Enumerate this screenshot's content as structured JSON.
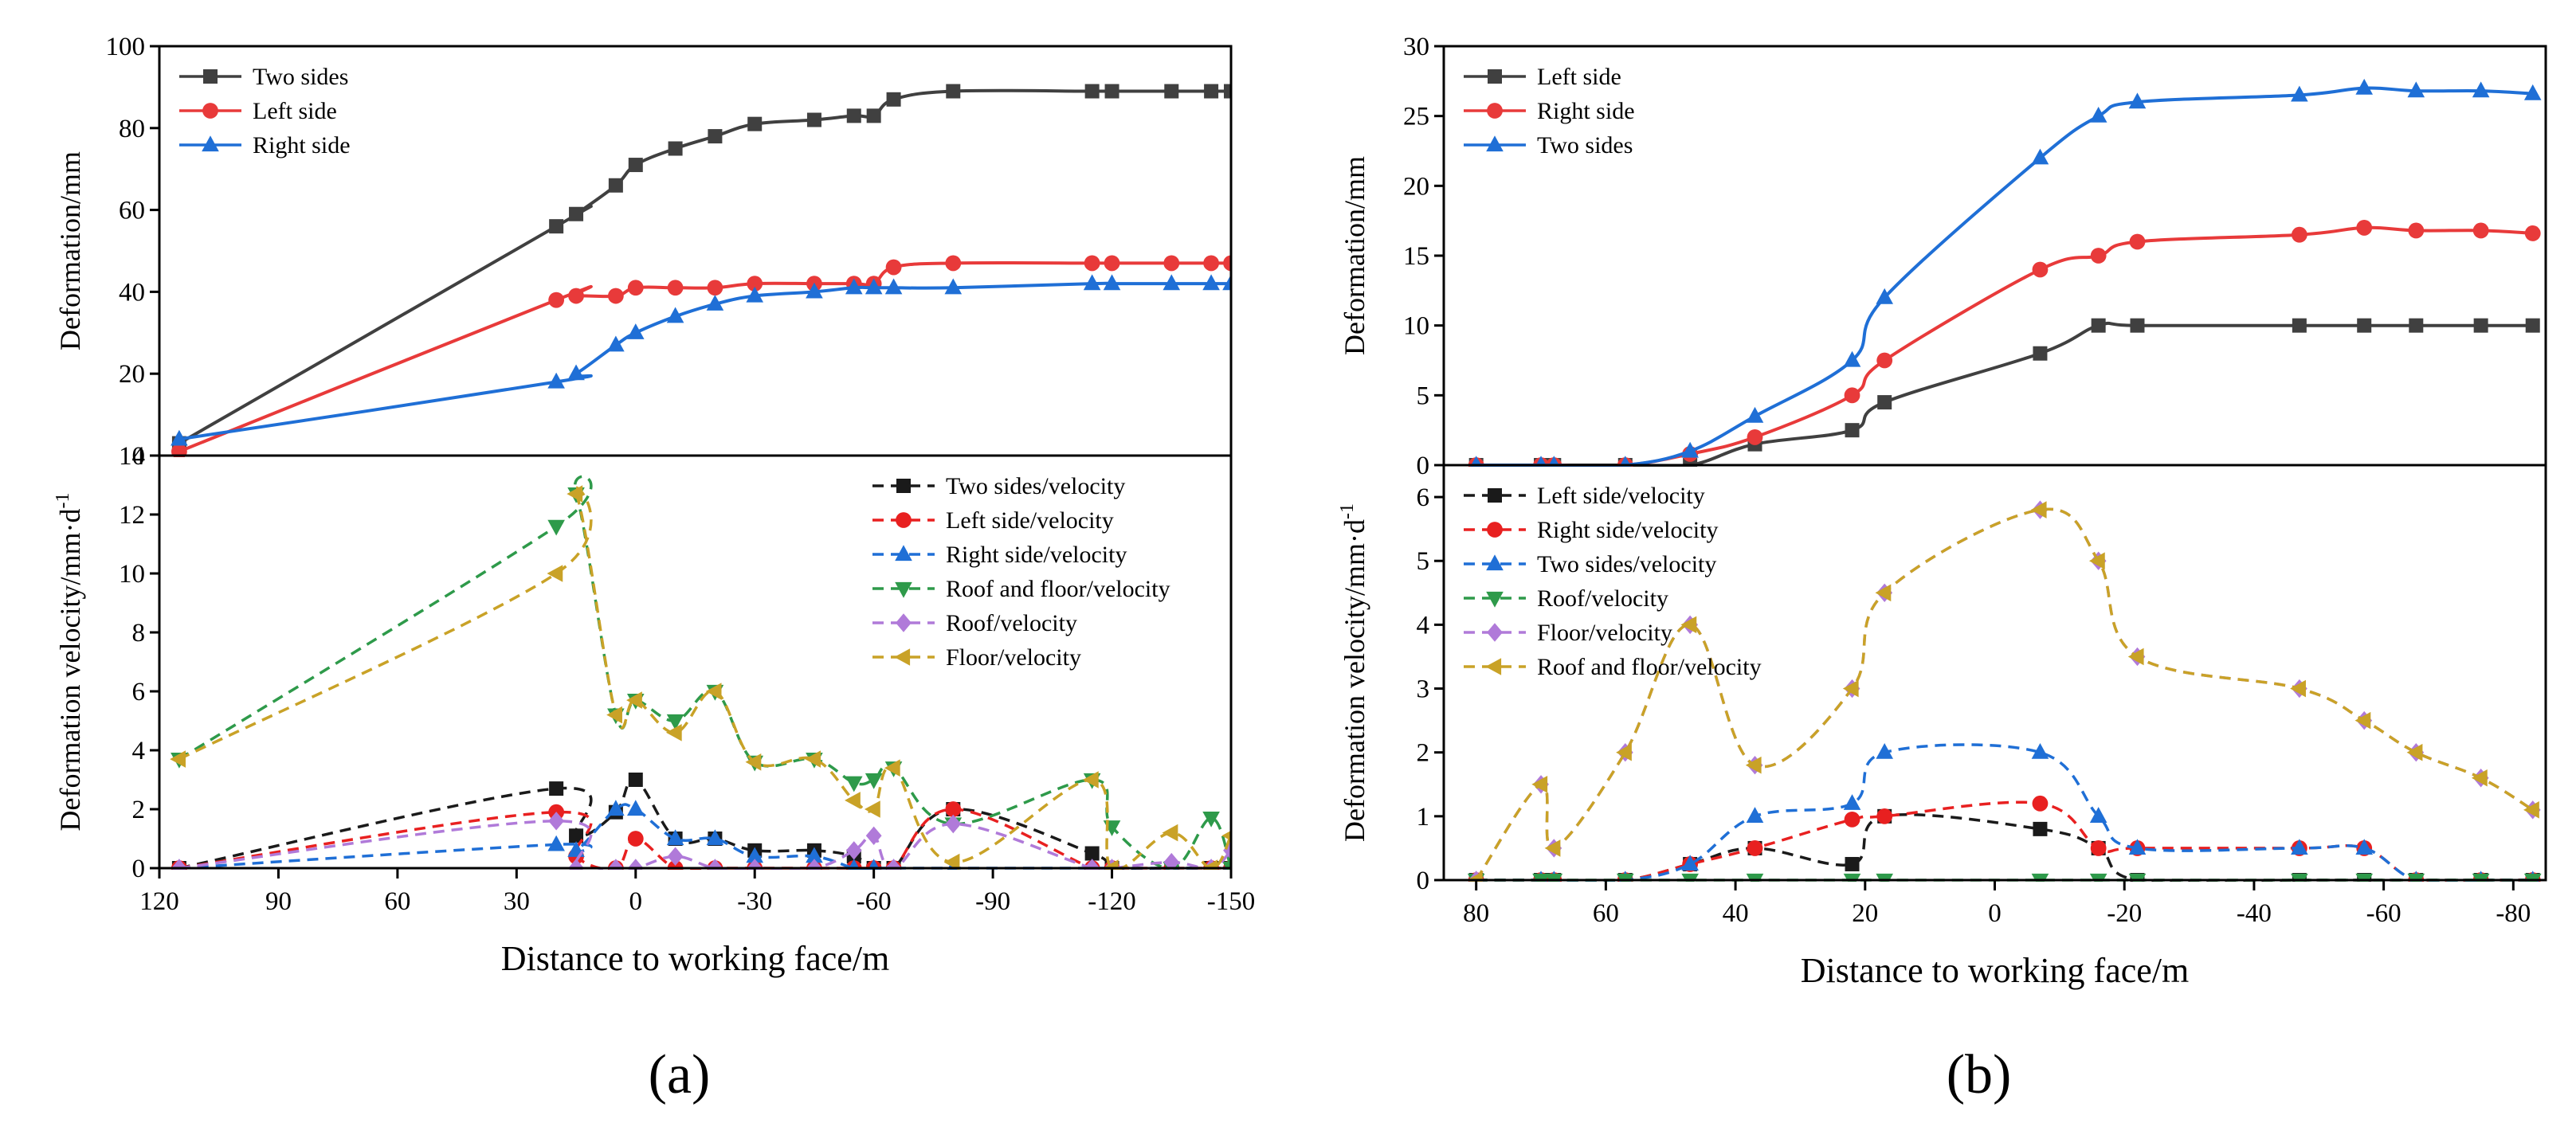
{
  "chart_data": [
    {
      "panel": "(a)",
      "type": "line",
      "xlabel": "Distance to working face/m",
      "xlim": [
        120,
        -150
      ],
      "xticks": [
        120,
        90,
        60,
        30,
        0,
        -30,
        -60,
        -90,
        -120,
        -150
      ],
      "top": {
        "ylabel": "Deformation/mm",
        "ylim": [
          0,
          100
        ],
        "yticks": [
          0,
          20,
          40,
          60,
          80,
          100
        ],
        "legend_position": "top-left",
        "series": [
          {
            "name": "Two sides",
            "color": "#404040",
            "marker": "square",
            "dash": false,
            "x": [
              115,
              20,
              15,
              5,
              0,
              -10,
              -20,
              -30,
              -45,
              -55,
              -60,
              -65,
              -80,
              -115,
              -120,
              -135,
              -145,
              -150
            ],
            "y": [
              3,
              56,
              59,
              66,
              71,
              75,
              78,
              81,
              82,
              83,
              83,
              87,
              89,
              89,
              89,
              89,
              89,
              89
            ]
          },
          {
            "name": "Left side",
            "color": "#e83a3a",
            "marker": "circle",
            "dash": false,
            "x": [
              115,
              20,
              15,
              5,
              0,
              -10,
              -20,
              -30,
              -45,
              -55,
              -60,
              -65,
              -80,
              -115,
              -120,
              -135,
              -145,
              -150
            ],
            "y": [
              1,
              38,
              39,
              39,
              41,
              41,
              41,
              42,
              42,
              42,
              42,
              46,
              47,
              47,
              47,
              47,
              47,
              47
            ]
          },
          {
            "name": "Right side",
            "color": "#1f6fd6",
            "marker": "triangle",
            "dash": false,
            "x": [
              115,
              20,
              15,
              5,
              0,
              -10,
              -20,
              -30,
              -45,
              -55,
              -60,
              -65,
              -80,
              -115,
              -120,
              -135,
              -145,
              -150
            ],
            "y": [
              4,
              18,
              20,
              27,
              30,
              34,
              37,
              39,
              40,
              41,
              41,
              41,
              41,
              42,
              42,
              42,
              42,
              42
            ]
          }
        ]
      },
      "bottom": {
        "ylabel": "Deformation velocity/mm·d",
        "ylabel_sup": "-1",
        "ylim": [
          0,
          14
        ],
        "yticks": [
          0,
          2,
          4,
          6,
          8,
          10,
          12,
          14
        ],
        "legend_position": "top-right",
        "series": [
          {
            "name": "Two sides/velocity",
            "color": "#1a1a1a",
            "marker": "square",
            "dash": true,
            "x": [
              115,
              20,
              15,
              5,
              0,
              -10,
              -20,
              -30,
              -45,
              -55,
              -60,
              -65,
              -80,
              -115,
              -120,
              -135,
              -145,
              -150
            ],
            "y": [
              0,
              2.7,
              1.1,
              1.9,
              3,
              1,
              1,
              0.6,
              0.6,
              0.4,
              0,
              0,
              2,
              0.5,
              0,
              0,
              0,
              0
            ]
          },
          {
            "name": "Left side/velocity",
            "color": "#e82020",
            "marker": "circle",
            "dash": true,
            "x": [
              115,
              20,
              15,
              5,
              0,
              -10,
              -20,
              -30,
              -45,
              -55,
              -60,
              -65,
              -80,
              -115,
              -120,
              -135,
              -145,
              -150
            ],
            "y": [
              0,
              1.9,
              0.4,
              0,
              1,
              0,
              0,
              0,
              0,
              0,
              0,
              0,
              2,
              0,
              0,
              0,
              0,
              0
            ]
          },
          {
            "name": "Right side/velocity",
            "color": "#1f6fd6",
            "marker": "triangle-up",
            "dash": true,
            "x": [
              115,
              20,
              15,
              5,
              0,
              -10,
              -20,
              -30,
              -45,
              -55,
              -60,
              -65,
              -80,
              -115,
              -120,
              -135,
              -145,
              -150
            ],
            "y": [
              0,
              0.8,
              0.6,
              2,
              2,
              1,
              1,
              0.4,
              0.4,
              0,
              0,
              0,
              0,
              0,
              0,
              0,
              0,
              0
            ]
          },
          {
            "name": "Roof and floor/velocity",
            "color": "#2e9a4a",
            "marker": "triangle-down",
            "dash": true,
            "x": [
              115,
              20,
              15,
              5,
              0,
              -10,
              -20,
              -30,
              -45,
              -55,
              -60,
              -65,
              -80,
              -115,
              -120,
              -135,
              -145,
              -150
            ],
            "y": [
              3.7,
              11.6,
              12.7,
              5.2,
              5.7,
              5,
              6,
              3.6,
              3.7,
              2.9,
              3,
              3.4,
              1.5,
              3,
              1.4,
              0,
              1.7,
              0
            ]
          },
          {
            "name": "Roof/velocity",
            "color": "#b07ad9",
            "marker": "diamond",
            "dash": true,
            "x": [
              115,
              20,
              15,
              5,
              0,
              -10,
              -20,
              -30,
              -45,
              -55,
              -60,
              -65,
              -80,
              -115,
              -120,
              -135,
              -145,
              -150
            ],
            "y": [
              0,
              1.6,
              0,
              0,
              0,
              0.4,
              0,
              0,
              0,
              0.6,
              1.1,
              0,
              1.5,
              0,
              0,
              0.2,
              0,
              0.6
            ]
          },
          {
            "name": "Floor/velocity",
            "color": "#c9a227",
            "marker": "triangle-left",
            "dash": true,
            "x": [
              115,
              20,
              15,
              5,
              0,
              -10,
              -20,
              -30,
              -45,
              -55,
              -60,
              -65,
              -80,
              -115,
              -120,
              -135,
              -145,
              -150
            ],
            "y": [
              3.7,
              10,
              12.7,
              5.2,
              5.7,
              4.6,
              6,
              3.6,
              3.7,
              2.3,
              2,
              3.4,
              0.2,
              3,
              0,
              1.2,
              0,
              1.1
            ]
          }
        ]
      }
    },
    {
      "panel": "(b)",
      "type": "line",
      "xlabel": "Distance to working face/m",
      "xlim": [
        85,
        -85
      ],
      "xticks": [
        80,
        60,
        40,
        20,
        0,
        -20,
        -40,
        -60,
        -80
      ],
      "top": {
        "ylabel": "Deformation/mm",
        "ylim": [
          0,
          30
        ],
        "yticks": [
          0,
          5,
          10,
          15,
          20,
          25,
          30
        ],
        "legend_position": "top-left",
        "series": [
          {
            "name": "Left side",
            "color": "#404040",
            "marker": "square",
            "dash": false,
            "x": [
              80,
              70,
              68,
              57,
              47,
              37,
              22,
              17,
              -7,
              -16,
              -22,
              -47,
              -57,
              -65,
              -75,
              -83
            ],
            "y": [
              0,
              0,
              0,
              0,
              0,
              1.5,
              2.5,
              4.5,
              8,
              10,
              10,
              10,
              10,
              10,
              10,
              10
            ]
          },
          {
            "name": "Right side",
            "color": "#e83a3a",
            "marker": "circle",
            "dash": false,
            "x": [
              80,
              70,
              68,
              57,
              47,
              37,
              22,
              17,
              -7,
              -16,
              -22,
              -47,
              -57,
              -65,
              -75,
              -83
            ],
            "y": [
              0,
              0,
              0,
              0,
              0.8,
              2,
              5,
              7.5,
              14,
              15,
              16,
              16.5,
              17,
              16.8,
              16.8,
              16.6
            ]
          },
          {
            "name": "Two sides",
            "color": "#1f6fd6",
            "marker": "triangle",
            "dash": false,
            "x": [
              80,
              70,
              68,
              57,
              47,
              37,
              22,
              17,
              -7,
              -16,
              -22,
              -47,
              -57,
              -65,
              -75,
              -83
            ],
            "y": [
              0,
              0,
              0,
              0,
              1,
              3.5,
              7.5,
              12,
              22,
              25,
              26,
              26.5,
              27,
              26.8,
              26.8,
              26.6
            ]
          }
        ]
      },
      "bottom": {
        "ylabel": "Deformation velocity/mm·d",
        "ylabel_sup": "-1",
        "ylim": [
          0,
          6.5
        ],
        "yticks": [
          0,
          1,
          2,
          3,
          4,
          5,
          6
        ],
        "legend_position": "top-left",
        "series": [
          {
            "name": "Left side/velocity",
            "color": "#1a1a1a",
            "marker": "square",
            "dash": true,
            "x": [
              80,
              70,
              68,
              57,
              47,
              37,
              22,
              17,
              -7,
              -16,
              -22,
              -47,
              -57,
              -65,
              -75,
              -83
            ],
            "y": [
              0,
              0,
              0,
              0,
              0.25,
              0.5,
              0.25,
              1,
              0.8,
              0.5,
              0,
              0,
              0,
              0,
              0,
              0
            ]
          },
          {
            "name": "Right side/velocity",
            "color": "#e82020",
            "marker": "circle",
            "dash": true,
            "x": [
              80,
              70,
              68,
              57,
              47,
              37,
              22,
              17,
              -7,
              -16,
              -22,
              -47,
              -57,
              -65,
              -75,
              -83
            ],
            "y": [
              0,
              0,
              0,
              0,
              0.25,
              0.5,
              0.95,
              1,
              1.2,
              0.5,
              0.5,
              0.5,
              0.5,
              0,
              0,
              0
            ]
          },
          {
            "name": "Two sides/velocity",
            "color": "#1f6fd6",
            "marker": "triangle-up",
            "dash": true,
            "x": [
              80,
              70,
              68,
              57,
              47,
              37,
              22,
              17,
              -7,
              -16,
              -22,
              -47,
              -57,
              -65,
              -75,
              -83
            ],
            "y": [
              0,
              0,
              0,
              0,
              0.25,
              1,
              1.2,
              2,
              2,
              1,
              0.5,
              0.5,
              0.5,
              0,
              0,
              0
            ]
          },
          {
            "name": "Roof/velocity",
            "color": "#2e9a4a",
            "marker": "triangle-down",
            "dash": true,
            "x": [
              80,
              70,
              68,
              57,
              47,
              37,
              22,
              17,
              -7,
              -16,
              -22,
              -47,
              -57,
              -65,
              -75,
              -83
            ],
            "y": [
              0,
              0,
              0,
              0,
              0,
              0,
              0,
              0,
              0,
              0,
              0,
              0,
              0,
              0,
              0,
              0
            ]
          },
          {
            "name": "Floor/velocity",
            "color": "#b07ad9",
            "marker": "diamond",
            "dash": true,
            "x": [
              80,
              70,
              68,
              57,
              47,
              37,
              22,
              17,
              -7,
              -16,
              -22,
              -47,
              -57,
              -65,
              -75,
              -83
            ],
            "y": [
              0,
              1.5,
              0.5,
              2,
              4,
              1.8,
              3,
              4.5,
              5.8,
              5,
              3.5,
              3,
              2.5,
              2,
              1.6,
              1.1
            ]
          },
          {
            "name": "Roof and floor/velocity",
            "color": "#c9a227",
            "marker": "triangle-left",
            "dash": true,
            "x": [
              80,
              70,
              68,
              57,
              47,
              37,
              22,
              17,
              -7,
              -16,
              -22,
              -47,
              -57,
              -65,
              -75,
              -83
            ],
            "y": [
              0,
              1.5,
              0.5,
              2,
              4,
              1.8,
              3,
              4.5,
              5.8,
              5,
              3.5,
              3,
              2.5,
              2,
              1.6,
              1.1
            ]
          }
        ]
      }
    }
  ]
}
